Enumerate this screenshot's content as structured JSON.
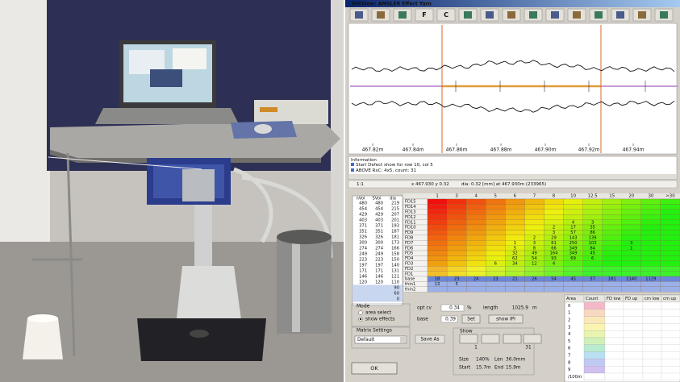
{
  "window": {
    "title": "MikView: AMSLER Effect Yarn",
    "toolbar_labels": [
      "F",
      "C"
    ]
  },
  "plot": {
    "x_labels": [
      "467.82m",
      "467.84m",
      "467.86m",
      "467.88m",
      "467.90m",
      "467.92m",
      "467.94m"
    ]
  },
  "info": {
    "title": "Information",
    "lines": [
      "Start Defect show for row 10, col 5",
      "ABOVE RxC: 4x5, count: 31"
    ]
  },
  "status": {
    "zoom": "1:1",
    "position": "x 467.930 y 0.32",
    "diameter": "dia: 0.32 [mm] at 467.930m (233965)"
  },
  "matrix": {
    "left_headers": [
      "nVol",
      "SVol",
      "dia"
    ],
    "left_rows": [
      [
        480,
        480,
        219
      ],
      [
        454,
        454,
        215
      ],
      [
        429,
        429,
        207
      ],
      [
        403,
        403,
        201
      ],
      [
        371,
        371,
        193
      ],
      [
        351,
        351,
        187
      ],
      [
        326,
        326,
        181
      ],
      [
        300,
        300,
        173
      ],
      [
        274,
        274,
        166
      ],
      [
        249,
        249,
        158
      ],
      [
        223,
        223,
        150
      ],
      [
        197,
        197,
        140
      ],
      [
        171,
        171,
        131
      ],
      [
        146,
        146,
        121
      ],
      [
        120,
        120,
        110
      ],
      [
        null,
        null,
        90
      ],
      [
        null,
        null,
        60
      ],
      [
        null,
        null,
        0
      ]
    ],
    "col_headers": [
      1,
      3,
      4,
      5,
      6,
      7,
      8,
      10,
      12.5,
      15,
      20,
      30,
      ">30"
    ],
    "row_labels": [
      "FD15",
      "FD14",
      "FD13",
      "FD12",
      "FD11",
      "FD10",
      "FD9",
      "FD8",
      "FD7",
      "FD6",
      "FD5",
      "FD4",
      "FD3",
      "FD2",
      "FD1",
      "base",
      "thin1",
      "thin2"
    ],
    "cells": [
      [
        null,
        null,
        null,
        null,
        null,
        null,
        null,
        null,
        null,
        null,
        null,
        null,
        null
      ],
      [
        null,
        null,
        null,
        null,
        null,
        null,
        null,
        null,
        null,
        null,
        null,
        null,
        null
      ],
      [
        null,
        null,
        null,
        null,
        null,
        null,
        null,
        null,
        null,
        null,
        null,
        null,
        null
      ],
      [
        null,
        null,
        null,
        null,
        null,
        null,
        null,
        null,
        null,
        null,
        null,
        null,
        null
      ],
      [
        null,
        null,
        null,
        null,
        null,
        null,
        null,
        4,
        3,
        null,
        null,
        null,
        null
      ],
      [
        null,
        null,
        null,
        null,
        null,
        null,
        2,
        17,
        35,
        null,
        null,
        null,
        null
      ],
      [
        null,
        null,
        null,
        null,
        null,
        null,
        3,
        57,
        86,
        null,
        null,
        null,
        null
      ],
      [
        null,
        null,
        null,
        null,
        null,
        2,
        29,
        143,
        139,
        null,
        null,
        null,
        null
      ],
      [
        null,
        null,
        null,
        null,
        1,
        3,
        61,
        250,
        103,
        null,
        3,
        null,
        null
      ],
      [
        null,
        null,
        null,
        null,
        5,
        8,
        66,
        349,
        84,
        null,
        1,
        null,
        null
      ],
      [
        null,
        null,
        null,
        null,
        32,
        49,
        164,
        349,
        45,
        null,
        null,
        null,
        null
      ],
      [
        null,
        null,
        null,
        null,
        62,
        54,
        93,
        69,
        6,
        null,
        null,
        null,
        null
      ],
      [
        null,
        null,
        null,
        6,
        34,
        12,
        4,
        null,
        null,
        null,
        null,
        null,
        null
      ],
      [
        null,
        null,
        null,
        null,
        null,
        null,
        null,
        null,
        null,
        null,
        null,
        null,
        null
      ],
      [
        null,
        null,
        null,
        null,
        null,
        null,
        null,
        null,
        null,
        null,
        null,
        null,
        null
      ],
      [
        18,
        23,
        24,
        23,
        21,
        26,
        54,
        45,
        57,
        181,
        1140,
        1129,
        null
      ],
      [
        13,
        5,
        null,
        null,
        null,
        null,
        null,
        null,
        null,
        null,
        null,
        null,
        null
      ],
      [
        null,
        null,
        null,
        null,
        null,
        null,
        null,
        null,
        null,
        null,
        null,
        null,
        null
      ]
    ]
  },
  "controls": {
    "mode_title": "Mode",
    "area_select": "area select",
    "show_effects": "show effects",
    "opt_cv_label": "opt cv",
    "opt_cv": "0.34",
    "cv_unit": "%",
    "length_label": "length",
    "length": "1025.9",
    "length_unit": "m",
    "base_label": "base",
    "base": "0.39",
    "set_button": "Set",
    "show_ipi": "show IPI",
    "matrix_settings": "Matrix Settings",
    "preset": "Default",
    "save_as": "Save As",
    "show_title": "Show",
    "show_from": "1",
    "show_to": "31",
    "size_label": "Size",
    "size": "140%",
    "len_label": "Len",
    "len": "36.0mm",
    "start_label": "Start",
    "start": "15.7m",
    "end_label": "End",
    "end": "15.9m",
    "ok": "OK"
  },
  "area_table": {
    "headers": [
      "Area",
      "Count",
      "FD low",
      "FD up",
      "cm low",
      "cm up"
    ],
    "rows": [
      "0",
      "1",
      "2",
      "3",
      "4",
      "5",
      "6",
      "7",
      "8",
      "9",
      "/100m"
    ]
  }
}
